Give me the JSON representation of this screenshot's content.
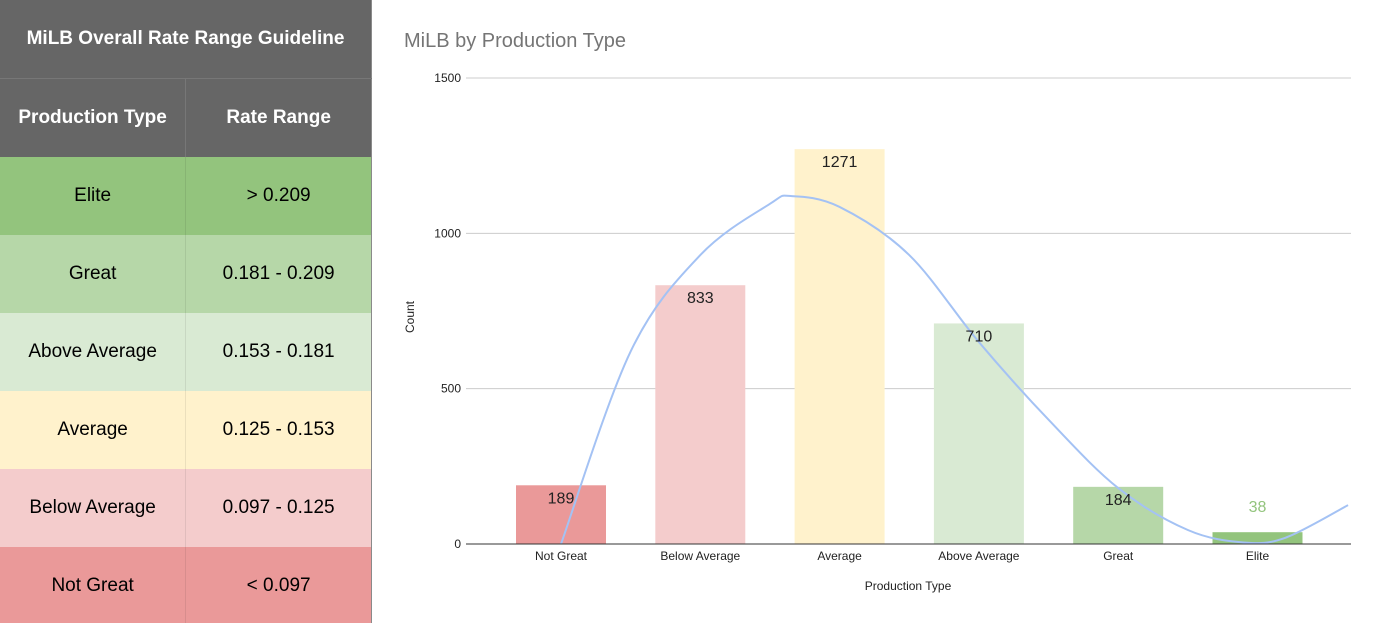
{
  "table": {
    "title": "MiLB Overall Rate Range Guideline",
    "headers": [
      "Production Type",
      "Rate Range"
    ],
    "header_bg": "#666666",
    "header_color": "#ffffff",
    "rows": [
      {
        "type": "Elite",
        "range": "> 0.209",
        "color": "#93c47d"
      },
      {
        "type": "Great",
        "range": "0.181 - 0.209",
        "color": "#b6d7a8"
      },
      {
        "type": "Above Average",
        "range": "0.153 - 0.181",
        "color": "#d9ead3"
      },
      {
        "type": "Average",
        "range": "0.125 - 0.153",
        "color": "#fff2cc"
      },
      {
        "type": "Below Average",
        "range": "0.097 - 0.125",
        "color": "#f4cccc"
      },
      {
        "type": "Not Great",
        "range": "< 0.097",
        "color": "#ea9999"
      }
    ]
  },
  "chart_data": {
    "type": "bar",
    "title": "MiLB by Production Type",
    "xlabel": "Production Type",
    "ylabel": "Count",
    "categories": [
      "Not Great",
      "Below Average",
      "Average",
      "Above Average",
      "Great",
      "Elite"
    ],
    "values": [
      189,
      833,
      1271,
      710,
      184,
      38
    ],
    "data_labels": [
      "189",
      "833",
      "1271",
      "710",
      "184",
      "38"
    ],
    "bar_colors": [
      "#ea9999",
      "#f4cccc",
      "#fff2cc",
      "#d9ead3",
      "#b6d7a8",
      "#93c47d"
    ],
    "label_colors": [
      "#222222",
      "#222222",
      "#222222",
      "#222222",
      "#222222",
      "#93c47d"
    ],
    "ylim": [
      0,
      1500
    ],
    "yticks": [
      0,
      500,
      1000,
      1500
    ],
    "ytick_labels": [
      "0",
      "500",
      "1000",
      "1500"
    ],
    "grid": true,
    "legend": "none",
    "trendline": {
      "type": "polynomial",
      "color": "#a4c2f4",
      "points": [
        {
          "x": 0.0,
          "y": 0
        },
        {
          "x": 0.5,
          "y": 620
        },
        {
          "x": 1.0,
          "y": 930
        },
        {
          "x": 1.5,
          "y": 1095
        },
        {
          "x": 1.65,
          "y": 1120
        },
        {
          "x": 2.0,
          "y": 1085
        },
        {
          "x": 2.5,
          "y": 930
        },
        {
          "x": 3.0,
          "y": 650
        },
        {
          "x": 3.5,
          "y": 400
        },
        {
          "x": 4.0,
          "y": 180
        },
        {
          "x": 4.5,
          "y": 45
        },
        {
          "x": 4.9,
          "y": 5
        },
        {
          "x": 5.2,
          "y": 20
        },
        {
          "x": 5.65,
          "y": 125
        }
      ]
    }
  }
}
